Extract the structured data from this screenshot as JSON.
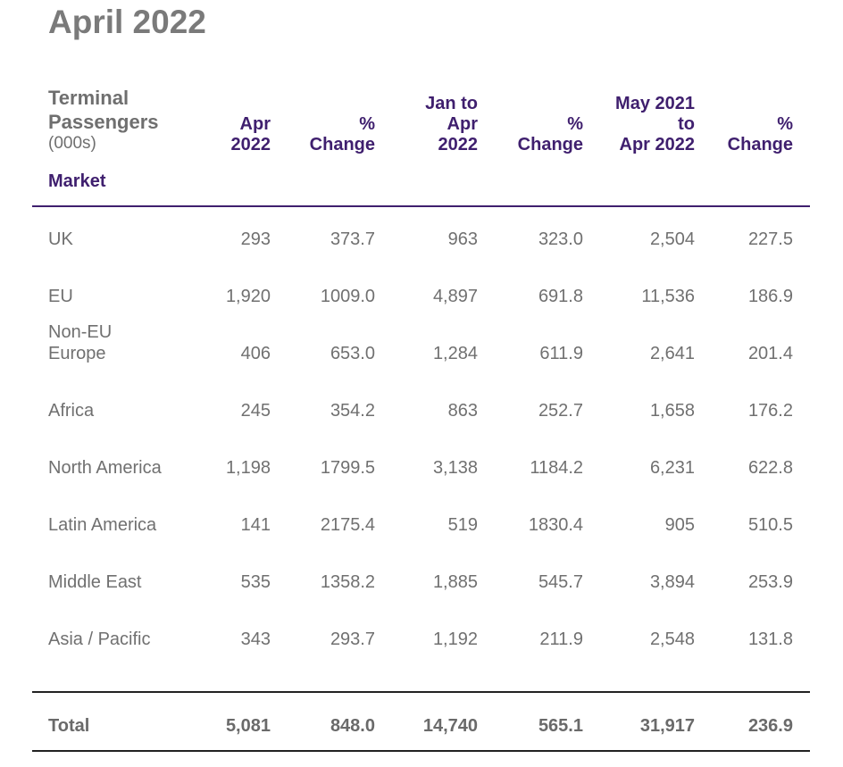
{
  "title": "April 2022",
  "headers": {
    "label_line1": "Terminal",
    "label_line2": "Passengers",
    "label_unit": "(000s)",
    "market": "Market",
    "columns": [
      [
        "Apr",
        "2022"
      ],
      [
        "%",
        "Change"
      ],
      [
        "Jan to",
        "Apr",
        "2022"
      ],
      [
        "%",
        "Change"
      ],
      [
        "May 2021",
        "to",
        "Apr 2022"
      ],
      [
        "%",
        "Change"
      ]
    ]
  },
  "rows": [
    {
      "market": [
        "UK"
      ],
      "values": [
        "293",
        "373.7",
        "963",
        "323.0",
        "2,504",
        "227.5"
      ]
    },
    {
      "market": [
        "EU"
      ],
      "values": [
        "1,920",
        "1009.0",
        "4,897",
        "691.8",
        "11,536",
        "186.9"
      ]
    },
    {
      "market": [
        "Non-EU",
        "Europe"
      ],
      "values": [
        "406",
        "653.0",
        "1,284",
        "611.9",
        "2,641",
        "201.4"
      ]
    },
    {
      "market": [
        "Africa"
      ],
      "values": [
        "245",
        "354.2",
        "863",
        "252.7",
        "1,658",
        "176.2"
      ]
    },
    {
      "market": [
        "North America"
      ],
      "values": [
        "1,198",
        "1799.5",
        "3,138",
        "1184.2",
        "6,231",
        "622.8"
      ]
    },
    {
      "market": [
        "Latin America"
      ],
      "values": [
        "141",
        "2175.4",
        "519",
        "1830.4",
        "905",
        "510.5"
      ]
    },
    {
      "market": [
        "Middle East"
      ],
      "values": [
        "535",
        "1358.2",
        "1,885",
        "545.7",
        "3,894",
        "253.9"
      ]
    },
    {
      "market": [
        "Asia / Pacific"
      ],
      "values": [
        "343",
        "293.7",
        "1,192",
        "211.9",
        "2,548",
        "131.8"
      ]
    }
  ],
  "total": {
    "market": "Total",
    "values": [
      "5,081",
      "848.0",
      "14,740",
      "565.1",
      "31,917",
      "236.9"
    ]
  }
}
